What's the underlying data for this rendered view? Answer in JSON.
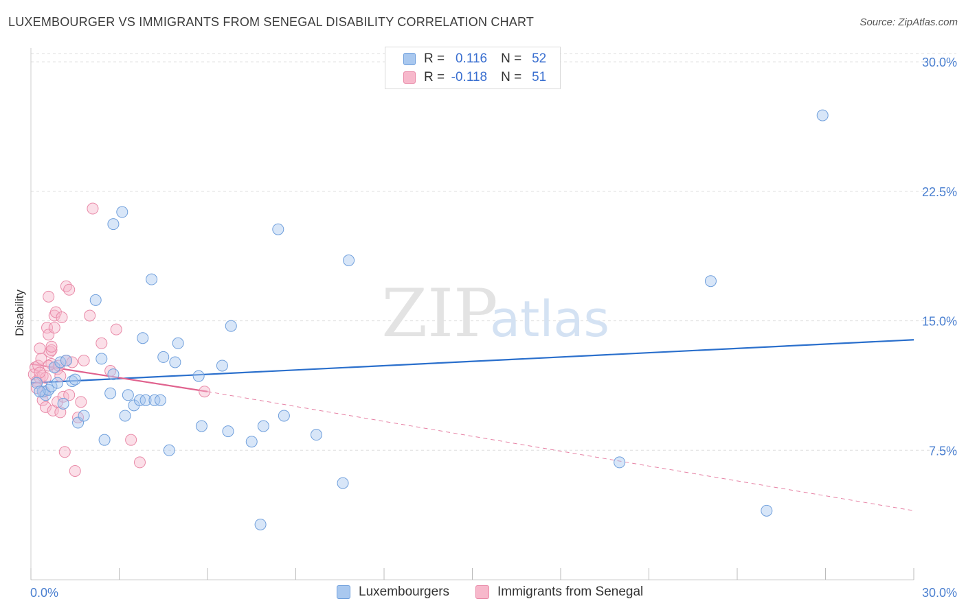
{
  "header": {
    "title": "LUXEMBOURGER VS IMMIGRANTS FROM SENEGAL DISABILITY CORRELATION CHART",
    "source": "Source: ZipAtlas.com"
  },
  "watermark": {
    "zip": "ZIP",
    "atlas": "atlas"
  },
  "legend": {
    "series1": {
      "r_label": "R =",
      "r_value": "0.116",
      "n_label": "N =",
      "n_value": "52"
    },
    "series2": {
      "r_label": "R =",
      "r_value": "-0.118",
      "n_label": "N =",
      "n_value": "51"
    }
  },
  "bottom_legend": {
    "series1": "Luxembourgers",
    "series2": "Immigrants from Senegal"
  },
  "colors": {
    "blue_fill": "#a9c8ef",
    "blue_stroke": "#6f9fdc",
    "blue_line": "#2a6fcc",
    "pink_fill": "#f7b8cb",
    "pink_stroke": "#e98aa8",
    "pink_line": "#e0628e",
    "axis_label": "#4a7fd0",
    "grid": "#dddddd"
  },
  "chart_data": {
    "type": "scatter",
    "title": "LUXEMBOURGER VS IMMIGRANTS FROM SENEGAL DISABILITY CORRELATION CHART",
    "xlabel": "",
    "ylabel": "Disability",
    "xlim": [
      0,
      30
    ],
    "ylim": [
      0,
      30.8
    ],
    "x_tick_labels": [
      "0.0%",
      "30.0%"
    ],
    "y_ticks": [
      7.5,
      15.0,
      22.5,
      30.0
    ],
    "y_tick_labels": [
      "7.5%",
      "15.0%",
      "22.5%",
      "30.0%"
    ],
    "series": [
      {
        "name": "Luxembourgers",
        "color": "#6f9fdc",
        "R": 0.116,
        "N": 52,
        "trend": {
          "x": [
            0,
            30
          ],
          "y": [
            11.4,
            13.9
          ]
        },
        "points": [
          [
            0.2,
            11.4
          ],
          [
            0.4,
            10.9
          ],
          [
            0.5,
            10.7
          ],
          [
            0.6,
            11.0
          ],
          [
            0.7,
            11.2
          ],
          [
            0.8,
            12.3
          ],
          [
            1.0,
            12.6
          ],
          [
            1.1,
            10.2
          ],
          [
            1.2,
            12.7
          ],
          [
            1.4,
            11.5
          ],
          [
            1.5,
            11.6
          ],
          [
            1.6,
            9.1
          ],
          [
            1.8,
            9.5
          ],
          [
            2.2,
            16.2
          ],
          [
            2.4,
            12.8
          ],
          [
            2.5,
            8.1
          ],
          [
            2.7,
            10.8
          ],
          [
            2.8,
            11.9
          ],
          [
            2.8,
            20.6
          ],
          [
            3.1,
            21.3
          ],
          [
            3.2,
            9.5
          ],
          [
            3.3,
            10.7
          ],
          [
            3.5,
            10.1
          ],
          [
            3.7,
            10.4
          ],
          [
            3.8,
            14.0
          ],
          [
            3.9,
            10.4
          ],
          [
            4.1,
            17.4
          ],
          [
            4.2,
            10.4
          ],
          [
            4.4,
            10.4
          ],
          [
            4.5,
            12.9
          ],
          [
            4.7,
            7.5
          ],
          [
            4.9,
            12.6
          ],
          [
            5.0,
            13.7
          ],
          [
            5.7,
            11.8
          ],
          [
            5.8,
            8.9
          ],
          [
            6.5,
            12.4
          ],
          [
            6.7,
            8.6
          ],
          [
            6.8,
            14.7
          ],
          [
            7.5,
            8.0
          ],
          [
            7.8,
            3.2
          ],
          [
            7.9,
            8.9
          ],
          [
            8.4,
            20.3
          ],
          [
            8.6,
            9.5
          ],
          [
            9.7,
            8.4
          ],
          [
            10.6,
            5.6
          ],
          [
            10.8,
            18.5
          ],
          [
            20.0,
            6.8
          ],
          [
            23.1,
            17.3
          ],
          [
            25.0,
            4.0
          ],
          [
            26.9,
            26.9
          ],
          [
            0.3,
            10.9
          ],
          [
            0.9,
            11.4
          ]
        ]
      },
      {
        "name": "Immigrants from Senegal",
        "color": "#e98aa8",
        "R": -0.118,
        "N": 51,
        "trend_solid": {
          "x": [
            0,
            6.0
          ],
          "y": [
            12.5,
            10.9
          ]
        },
        "trend_dashed": {
          "x": [
            6.0,
            30
          ],
          "y": [
            10.9,
            4.0
          ]
        },
        "points": [
          [
            0.1,
            11.9
          ],
          [
            0.15,
            12.3
          ],
          [
            0.2,
            11.5
          ],
          [
            0.25,
            12.4
          ],
          [
            0.3,
            11.7
          ],
          [
            0.3,
            13.4
          ],
          [
            0.35,
            12.8
          ],
          [
            0.4,
            11.8
          ],
          [
            0.4,
            10.4
          ],
          [
            0.45,
            10.9
          ],
          [
            0.5,
            11.7
          ],
          [
            0.5,
            10.0
          ],
          [
            0.55,
            14.6
          ],
          [
            0.6,
            14.2
          ],
          [
            0.6,
            16.4
          ],
          [
            0.65,
            13.2
          ],
          [
            0.7,
            13.3
          ],
          [
            0.7,
            12.5
          ],
          [
            0.75,
            9.8
          ],
          [
            0.8,
            15.3
          ],
          [
            0.8,
            14.6
          ],
          [
            0.85,
            15.5
          ],
          [
            0.9,
            10.3
          ],
          [
            0.9,
            12.2
          ],
          [
            0.95,
            12.4
          ],
          [
            1.0,
            9.7
          ],
          [
            1.0,
            11.8
          ],
          [
            1.05,
            15.2
          ],
          [
            1.1,
            10.6
          ],
          [
            1.15,
            7.4
          ],
          [
            1.2,
            12.7
          ],
          [
            1.2,
            17.0
          ],
          [
            1.3,
            16.8
          ],
          [
            1.3,
            10.7
          ],
          [
            1.4,
            12.6
          ],
          [
            1.5,
            6.3
          ],
          [
            1.6,
            9.4
          ],
          [
            1.7,
            10.3
          ],
          [
            1.8,
            12.7
          ],
          [
            2.0,
            15.3
          ],
          [
            2.1,
            21.5
          ],
          [
            2.4,
            13.7
          ],
          [
            2.7,
            12.1
          ],
          [
            2.9,
            14.5
          ],
          [
            3.4,
            8.1
          ],
          [
            3.7,
            6.8
          ],
          [
            5.9,
            10.9
          ],
          [
            0.2,
            11.1
          ],
          [
            0.6,
            12.4
          ],
          [
            0.3,
            12.0
          ],
          [
            0.7,
            13.5
          ]
        ]
      }
    ]
  }
}
